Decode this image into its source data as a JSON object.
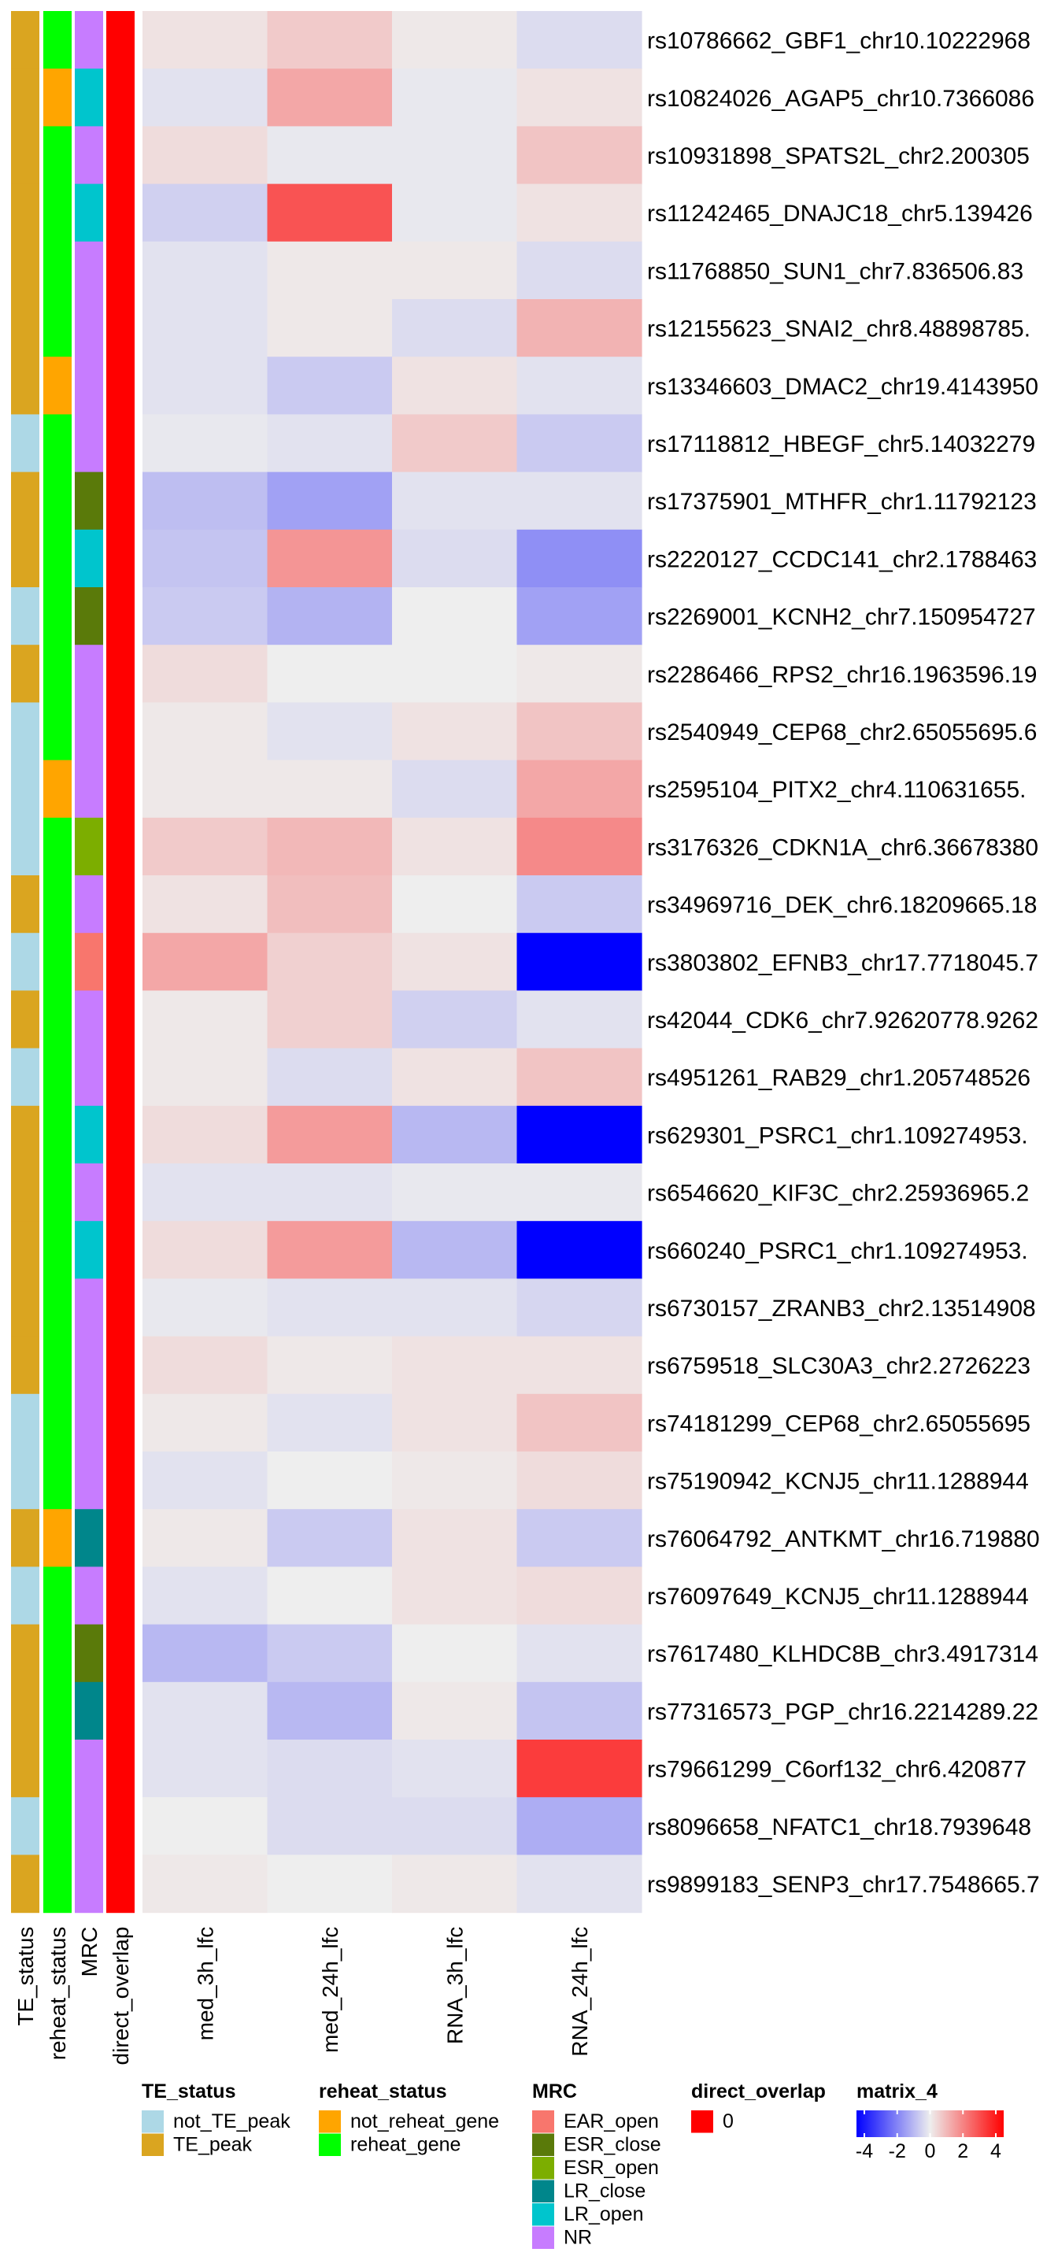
{
  "chart_data": {
    "type": "heatmap",
    "columns": [
      "med_3h_lfc",
      "med_24h_lfc",
      "RNA_3h_lfc",
      "RNA_24h_lfc"
    ],
    "annotation_columns": [
      "TE_status",
      "reheat_status",
      "MRC",
      "direct_overlap"
    ],
    "rows": [
      {
        "label": "rs10786662_GBF1_chr10.10222968",
        "TE": "TE_peak",
        "reheat": "reheat_gene",
        "MRC": "NR",
        "overlap": "0",
        "values": [
          0.2,
          0.6,
          0.1,
          -0.3
        ]
      },
      {
        "label": "rs10824026_AGAP5_chr10.7366086",
        "TE": "TE_peak",
        "reheat": "not_reheat_gene",
        "MRC": "LR_open",
        "overlap": "0",
        "values": [
          -0.2,
          1.2,
          -0.1,
          0.2
        ]
      },
      {
        "label": "rs10931898_SPATS2L_chr2.200305",
        "TE": "TE_peak",
        "reheat": "reheat_gene",
        "MRC": "NR",
        "overlap": "0",
        "values": [
          0.3,
          -0.1,
          -0.1,
          0.7
        ]
      },
      {
        "label": "rs11242465_DNAJC18_chr5.139426",
        "TE": "TE_peak",
        "reheat": "reheat_gene",
        "MRC": "LR_open",
        "overlap": "0",
        "values": [
          -0.5,
          2.6,
          -0.1,
          0.2
        ]
      },
      {
        "label": "rs11768850_SUN1_chr7.836506.83",
        "TE": "TE_peak",
        "reheat": "reheat_gene",
        "MRC": "NR",
        "overlap": "0",
        "values": [
          -0.2,
          0.1,
          0.1,
          -0.3
        ]
      },
      {
        "label": "rs12155623_SNAI2_chr8.48898785.",
        "TE": "TE_peak",
        "reheat": "reheat_gene",
        "MRC": "NR",
        "overlap": "0",
        "values": [
          -0.2,
          0.1,
          -0.3,
          1.0
        ]
      },
      {
        "label": "rs13346603_DMAC2_chr19.4143950",
        "TE": "TE_peak",
        "reheat": "not_reheat_gene",
        "MRC": "NR",
        "overlap": "0",
        "values": [
          -0.2,
          -0.6,
          0.2,
          -0.2
        ]
      },
      {
        "label": "rs17118812_HBEGF_chr5.14032279",
        "TE": "not_TE_peak",
        "reheat": "reheat_gene",
        "MRC": "NR",
        "overlap": "0",
        "values": [
          -0.1,
          -0.2,
          0.6,
          -0.6
        ]
      },
      {
        "label": "rs17375901_MTHFR_chr1.11792123",
        "TE": "TE_peak",
        "reheat": "reheat_gene",
        "MRC": "ESR_close",
        "overlap": "0",
        "values": [
          -0.8,
          -1.3,
          -0.2,
          -0.2
        ]
      },
      {
        "label": "rs2220127_CCDC141_chr2.1788463",
        "TE": "TE_peak",
        "reheat": "reheat_gene",
        "MRC": "LR_open",
        "overlap": "0",
        "values": [
          -0.7,
          1.5,
          -0.3,
          -1.6
        ]
      },
      {
        "label": "rs2269001_KCNH2_chr7.150954727",
        "TE": "not_TE_peak",
        "reheat": "reheat_gene",
        "MRC": "ESR_close",
        "overlap": "0",
        "values": [
          -0.6,
          -1.0,
          0.0,
          -1.3
        ]
      },
      {
        "label": "rs2286466_RPS2_chr16.1963596.19",
        "TE": "TE_peak",
        "reheat": "reheat_gene",
        "MRC": "NR",
        "overlap": "0",
        "values": [
          0.3,
          0.0,
          0.0,
          0.1
        ]
      },
      {
        "label": "rs2540949_CEP68_chr2.65055695.6",
        "TE": "not_TE_peak",
        "reheat": "reheat_gene",
        "MRC": "NR",
        "overlap": "0",
        "values": [
          0.1,
          -0.2,
          0.2,
          0.7
        ]
      },
      {
        "label": "rs2595104_PITX2_chr4.110631655.",
        "TE": "not_TE_peak",
        "reheat": "not_reheat_gene",
        "MRC": "NR",
        "overlap": "0",
        "values": [
          0.1,
          0.1,
          -0.3,
          1.2
        ]
      },
      {
        "label": "rs3176326_CDKN1A_chr6.36678380",
        "TE": "not_TE_peak",
        "reheat": "reheat_gene",
        "MRC": "ESR_open",
        "overlap": "0",
        "values": [
          0.6,
          0.9,
          0.2,
          1.7
        ]
      },
      {
        "label": "rs34969716_DEK_chr6.18209665.18",
        "TE": "TE_peak",
        "reheat": "reheat_gene",
        "MRC": "NR",
        "overlap": "0",
        "values": [
          0.2,
          0.8,
          0.0,
          -0.6
        ]
      },
      {
        "label": "rs3803802_EFNB3_chr17.7718045.7",
        "TE": "not_TE_peak",
        "reheat": "reheat_gene",
        "MRC": "EAR_open",
        "overlap": "0",
        "values": [
          1.2,
          0.5,
          0.2,
          -4.0
        ]
      },
      {
        "label": "rs42044_CDK6_chr7.92620778.9262",
        "TE": "TE_peak",
        "reheat": "reheat_gene",
        "MRC": "NR",
        "overlap": "0",
        "values": [
          0.1,
          0.5,
          -0.5,
          -0.2
        ]
      },
      {
        "label": "rs4951261_RAB29_chr1.205748526",
        "TE": "not_TE_peak",
        "reheat": "reheat_gene",
        "MRC": "NR",
        "overlap": "0",
        "values": [
          0.1,
          -0.3,
          0.2,
          0.7
        ]
      },
      {
        "label": "rs629301_PSRC1_chr1.109274953.",
        "TE": "TE_peak",
        "reheat": "reheat_gene",
        "MRC": "LR_open",
        "overlap": "0",
        "values": [
          0.3,
          1.4,
          -0.9,
          -4.0
        ]
      },
      {
        "label": "rs6546620_KIF3C_chr2.25936965.2",
        "TE": "TE_peak",
        "reheat": "reheat_gene",
        "MRC": "NR",
        "overlap": "0",
        "values": [
          -0.2,
          -0.2,
          -0.1,
          -0.1
        ]
      },
      {
        "label": "rs660240_PSRC1_chr1.109274953.",
        "TE": "TE_peak",
        "reheat": "reheat_gene",
        "MRC": "LR_open",
        "overlap": "0",
        "values": [
          0.3,
          1.4,
          -0.9,
          -4.0
        ]
      },
      {
        "label": "rs6730157_ZRANB3_chr2.13514908",
        "TE": "TE_peak",
        "reheat": "reheat_gene",
        "MRC": "NR",
        "overlap": "0",
        "values": [
          -0.1,
          -0.2,
          -0.2,
          -0.4
        ]
      },
      {
        "label": "rs6759518_SLC30A3_chr2.2726223",
        "TE": "TE_peak",
        "reheat": "reheat_gene",
        "MRC": "NR",
        "overlap": "0",
        "values": [
          0.3,
          0.1,
          0.2,
          0.2
        ]
      },
      {
        "label": "rs74181299_CEP68_chr2.65055695",
        "TE": "not_TE_peak",
        "reheat": "reheat_gene",
        "MRC": "NR",
        "overlap": "0",
        "values": [
          0.1,
          -0.2,
          0.2,
          0.7
        ]
      },
      {
        "label": "rs75190942_KCNJ5_chr11.1288944",
        "TE": "not_TE_peak",
        "reheat": "reheat_gene",
        "MRC": "NR",
        "overlap": "0",
        "values": [
          -0.2,
          0.0,
          0.1,
          0.3
        ]
      },
      {
        "label": "rs76064792_ANTKMT_chr16.719880",
        "TE": "TE_peak",
        "reheat": "not_reheat_gene",
        "MRC": "LR_close",
        "overlap": "0",
        "values": [
          0.1,
          -0.6,
          0.2,
          -0.6
        ]
      },
      {
        "label": "rs76097649_KCNJ5_chr11.1288944",
        "TE": "not_TE_peak",
        "reheat": "reheat_gene",
        "MRC": "NR",
        "overlap": "0",
        "values": [
          -0.2,
          0.0,
          0.2,
          0.3
        ]
      },
      {
        "label": "rs7617480_KLHDC8B_chr3.4917314",
        "TE": "TE_peak",
        "reheat": "reheat_gene",
        "MRC": "ESR_close",
        "overlap": "0",
        "values": [
          -0.9,
          -0.6,
          0.0,
          -0.2
        ]
      },
      {
        "label": "rs77316573_PGP_chr16.2214289.22",
        "TE": "TE_peak",
        "reheat": "reheat_gene",
        "MRC": "LR_close",
        "overlap": "0",
        "values": [
          -0.2,
          -0.9,
          0.1,
          -0.7
        ]
      },
      {
        "label": "rs79661299_C6orf132_chr6.420877",
        "TE": "TE_peak",
        "reheat": "reheat_gene",
        "MRC": "NR",
        "overlap": "0",
        "values": [
          -0.2,
          -0.3,
          -0.2,
          3.0
        ]
      },
      {
        "label": "rs8096658_NFATC1_chr18.7939648",
        "TE": "not_TE_peak",
        "reheat": "reheat_gene",
        "MRC": "NR",
        "overlap": "0",
        "values": [
          0.0,
          -0.3,
          -0.3,
          -1.1
        ]
      },
      {
        "label": "rs9899183_SENP3_chr17.7548665.7",
        "TE": "TE_peak",
        "reheat": "reheat_gene",
        "MRC": "NR",
        "overlap": "0",
        "values": [
          0.1,
          0.0,
          0.1,
          -0.2
        ]
      }
    ],
    "colors": {
      "TE_status": {
        "not_TE_peak": "#ADD8E6",
        "TE_peak": "#DAA520"
      },
      "reheat_status": {
        "not_reheat_gene": "#FFA500",
        "reheat_gene": "#00FF00"
      },
      "MRC": {
        "EAR_open": "#F8766D",
        "ESR_close": "#5A7A0A",
        "ESR_open": "#7CAE00",
        "LR_close": "#00868B",
        "LR_open": "#00C5CD",
        "NR": "#C77CFF"
      },
      "direct_overlap": {
        "0": "#FF0000"
      }
    },
    "color_scale": {
      "min": -4,
      "mid": 0,
      "max": 4,
      "low": "#0000FF",
      "midcolor": "#EEEEEE",
      "high": "#FF0000"
    },
    "legends": [
      {
        "title": "TE_status",
        "items": [
          "not_TE_peak",
          "TE_peak"
        ]
      },
      {
        "title": "reheat_status",
        "items": [
          "not_reheat_gene",
          "reheat_gene"
        ]
      },
      {
        "title": "MRC",
        "items": [
          "EAR_open",
          "ESR_close",
          "ESR_open",
          "LR_close",
          "LR_open",
          "NR"
        ]
      },
      {
        "title": "direct_overlap",
        "items": [
          "0"
        ]
      }
    ],
    "colorbar": {
      "title": "matrix_4",
      "ticks": [
        "-4",
        "-2",
        "0",
        "2",
        "4"
      ]
    }
  }
}
